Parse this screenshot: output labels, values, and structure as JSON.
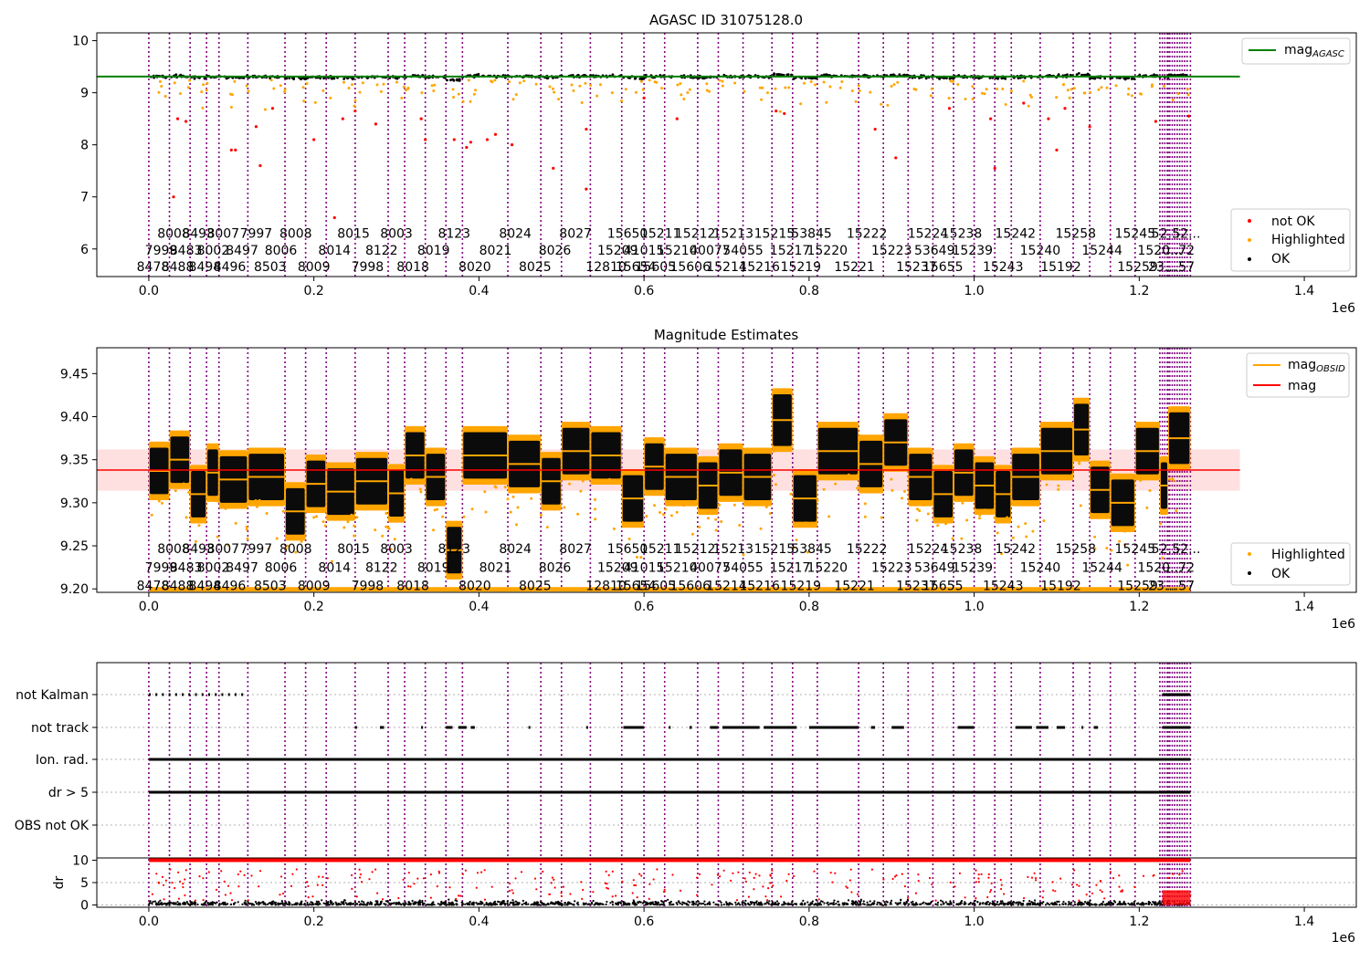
{
  "chart_data": [
    {
      "type": "scatter",
      "title": "AGASC ID 31075128.0",
      "x_offset_label": "1e6",
      "xlim": [
        -0.063,
        1.463
      ],
      "ylim": [
        5.47,
        10.15
      ],
      "xticks": [
        "0.0",
        "0.2",
        "0.4",
        "0.6",
        "0.8",
        "1.0",
        "1.2",
        "1.4"
      ],
      "yticks": [
        "6",
        "7",
        "8",
        "9",
        "10"
      ],
      "reference_line": {
        "label": "mag_AGASC",
        "value": 9.31,
        "x_end": 1.322
      },
      "legend_top": [
        {
          "label": "mag",
          "sub": "AGASC",
          "color": "#008000"
        }
      ],
      "legend_bottom": [
        {
          "label": "not OK",
          "color": "#ff0000"
        },
        {
          "label": "Highlighted",
          "color": "#ffa500"
        },
        {
          "label": "OK",
          "color": "#000000"
        }
      ],
      "obsid_rows": [
        [
          {
            "x": 0.03,
            "t": "8008"
          },
          {
            "x": 0.06,
            "t": "8493"
          },
          {
            "x": 0.09,
            "t": "8007"
          },
          {
            "x": 0.13,
            "t": "7997"
          },
          {
            "x": 0.178,
            "t": "8008"
          },
          {
            "x": 0.248,
            "t": "8015"
          },
          {
            "x": 0.3,
            "t": "8003"
          },
          {
            "x": 0.37,
            "t": "8123"
          },
          {
            "x": 0.444,
            "t": "8024"
          },
          {
            "x": 0.517,
            "t": "8027"
          },
          {
            "x": 0.58,
            "t": "15650"
          },
          {
            "x": 0.62,
            "t": "15211"
          },
          {
            "x": 0.662,
            "t": "15212"
          },
          {
            "x": 0.708,
            "t": "15213"
          },
          {
            "x": 0.758,
            "t": "15215"
          },
          {
            "x": 0.803,
            "t": "53845"
          },
          {
            "x": 0.87,
            "t": "15222"
          },
          {
            "x": 0.944,
            "t": "15224"
          },
          {
            "x": 0.985,
            "t": "15238"
          },
          {
            "x": 1.05,
            "t": "15242"
          },
          {
            "x": 1.123,
            "t": "15258"
          },
          {
            "x": 1.195,
            "t": "15245"
          },
          {
            "x": 1.232,
            "t": "52..."
          },
          {
            "x": 1.257,
            "t": "52..."
          }
        ],
        [
          {
            "x": 0.015,
            "t": "7999"
          },
          {
            "x": 0.045,
            "t": "8483"
          },
          {
            "x": 0.078,
            "t": "8002"
          },
          {
            "x": 0.113,
            "t": "8497"
          },
          {
            "x": 0.16,
            "t": "8006"
          },
          {
            "x": 0.225,
            "t": "8014"
          },
          {
            "x": 0.282,
            "t": "8122"
          },
          {
            "x": 0.345,
            "t": "8019"
          },
          {
            "x": 0.42,
            "t": "8021"
          },
          {
            "x": 0.492,
            "t": "8026"
          },
          {
            "x": 0.568,
            "t": "15209"
          },
          {
            "x": 0.6,
            "t": "41015"
          },
          {
            "x": 0.64,
            "t": "15210"
          },
          {
            "x": 0.68,
            "t": "40077"
          },
          {
            "x": 0.72,
            "t": "54055"
          },
          {
            "x": 0.777,
            "t": "15217"
          },
          {
            "x": 0.822,
            "t": "15220"
          },
          {
            "x": 0.9,
            "t": "15223"
          },
          {
            "x": 0.952,
            "t": "53649"
          },
          {
            "x": 0.998,
            "t": "15239"
          },
          {
            "x": 1.08,
            "t": "15240"
          },
          {
            "x": 1.155,
            "t": "15244"
          },
          {
            "x": 1.225,
            "t": "1520..."
          },
          {
            "x": 1.25,
            "t": "...72"
          }
        ],
        [
          {
            "x": 0.005,
            "t": "8478"
          },
          {
            "x": 0.035,
            "t": "8488"
          },
          {
            "x": 0.068,
            "t": "8494"
          },
          {
            "x": 0.098,
            "t": "8496"
          },
          {
            "x": 0.147,
            "t": "8503"
          },
          {
            "x": 0.2,
            "t": "8009"
          },
          {
            "x": 0.265,
            "t": "7998"
          },
          {
            "x": 0.32,
            "t": "8018"
          },
          {
            "x": 0.395,
            "t": "8020"
          },
          {
            "x": 0.468,
            "t": "8025"
          },
          {
            "x": 0.554,
            "t": "12810"
          },
          {
            "x": 0.59,
            "t": "15654"
          },
          {
            "x": 0.614,
            "t": "15605"
          },
          {
            "x": 0.656,
            "t": "15606"
          },
          {
            "x": 0.7,
            "t": "15214"
          },
          {
            "x": 0.74,
            "t": "15216"
          },
          {
            "x": 0.79,
            "t": "15219"
          },
          {
            "x": 0.855,
            "t": "15221"
          },
          {
            "x": 0.93,
            "t": "15237"
          },
          {
            "x": 0.962,
            "t": "15655"
          },
          {
            "x": 1.035,
            "t": "15243"
          },
          {
            "x": 1.105,
            "t": "15192"
          },
          {
            "x": 1.198,
            "t": "15259"
          },
          {
            "x": 1.228,
            "t": "23..."
          },
          {
            "x": 1.25,
            "t": "...57"
          }
        ]
      ]
    },
    {
      "type": "scatter",
      "title": "Magnitude Estimates",
      "x_offset_label": "1e6",
      "xlim": [
        -0.063,
        1.463
      ],
      "ylim": [
        9.196,
        9.48
      ],
      "xticks": [
        "0.0",
        "0.2",
        "0.4",
        "0.6",
        "0.8",
        "1.0",
        "1.2",
        "1.4"
      ],
      "yticks": [
        "9.20",
        "9.25",
        "9.30",
        "9.35",
        "9.40",
        "9.45"
      ],
      "mag_line": {
        "value": 9.338,
        "band": [
          9.314,
          9.362
        ],
        "x_end": 1.322
      },
      "legend_top": [
        {
          "label": "mag",
          "sub": "OBSID",
          "color": "#ffa500"
        },
        {
          "label": "mag",
          "sub": "",
          "color": "#ff0000"
        }
      ],
      "legend_bottom": [
        {
          "label": "Highlighted",
          "color": "#ffa500"
        },
        {
          "label": "OK",
          "color": "#000000"
        }
      ],
      "obsid_mags": [
        {
          "x0": 0.0,
          "x1": 0.025,
          "mag": 9.337
        },
        {
          "x0": 0.025,
          "x1": 0.05,
          "mag": 9.35
        },
        {
          "x0": 0.05,
          "x1": 0.07,
          "mag": 9.31
        },
        {
          "x0": 0.07,
          "x1": 0.085,
          "mag": 9.335
        },
        {
          "x0": 0.085,
          "x1": 0.12,
          "mag": 9.327
        },
        {
          "x0": 0.12,
          "x1": 0.165,
          "mag": 9.33
        },
        {
          "x0": 0.165,
          "x1": 0.19,
          "mag": 9.29
        },
        {
          "x0": 0.19,
          "x1": 0.215,
          "mag": 9.322
        },
        {
          "x0": 0.215,
          "x1": 0.25,
          "mag": 9.313
        },
        {
          "x0": 0.25,
          "x1": 0.29,
          "mag": 9.325
        },
        {
          "x0": 0.29,
          "x1": 0.31,
          "mag": 9.311
        },
        {
          "x0": 0.31,
          "x1": 0.335,
          "mag": 9.355
        },
        {
          "x0": 0.335,
          "x1": 0.36,
          "mag": 9.33
        },
        {
          "x0": 0.36,
          "x1": 0.38,
          "mag": 9.245
        },
        {
          "x0": 0.38,
          "x1": 0.435,
          "mag": 9.355
        },
        {
          "x0": 0.435,
          "x1": 0.475,
          "mag": 9.345
        },
        {
          "x0": 0.475,
          "x1": 0.5,
          "mag": 9.325
        },
        {
          "x0": 0.5,
          "x1": 0.535,
          "mag": 9.36
        },
        {
          "x0": 0.535,
          "x1": 0.573,
          "mag": 9.355
        },
        {
          "x0": 0.573,
          "x1": 0.6,
          "mag": 9.305
        },
        {
          "x0": 0.6,
          "x1": 0.625,
          "mag": 9.342
        },
        {
          "x0": 0.625,
          "x1": 0.665,
          "mag": 9.33
        },
        {
          "x0": 0.665,
          "x1": 0.69,
          "mag": 9.32
        },
        {
          "x0": 0.69,
          "x1": 0.72,
          "mag": 9.335
        },
        {
          "x0": 0.72,
          "x1": 0.755,
          "mag": 9.33
        },
        {
          "x0": 0.755,
          "x1": 0.78,
          "mag": 9.396
        },
        {
          "x0": 0.78,
          "x1": 0.81,
          "mag": 9.305
        },
        {
          "x0": 0.81,
          "x1": 0.86,
          "mag": 9.36
        },
        {
          "x0": 0.86,
          "x1": 0.89,
          "mag": 9.345
        },
        {
          "x0": 0.89,
          "x1": 0.92,
          "mag": 9.37
        },
        {
          "x0": 0.92,
          "x1": 0.95,
          "mag": 9.33
        },
        {
          "x0": 0.95,
          "x1": 0.975,
          "mag": 9.31
        },
        {
          "x0": 0.975,
          "x1": 1.0,
          "mag": 9.335
        },
        {
          "x0": 1.0,
          "x1": 1.025,
          "mag": 9.32
        },
        {
          "x0": 1.025,
          "x1": 1.045,
          "mag": 9.31
        },
        {
          "x0": 1.045,
          "x1": 1.08,
          "mag": 9.33
        },
        {
          "x0": 1.08,
          "x1": 1.12,
          "mag": 9.36
        },
        {
          "x0": 1.12,
          "x1": 1.14,
          "mag": 9.385
        },
        {
          "x0": 1.14,
          "x1": 1.165,
          "mag": 9.315
        },
        {
          "x0": 1.165,
          "x1": 1.195,
          "mag": 9.3
        },
        {
          "x0": 1.195,
          "x1": 1.225,
          "mag": 9.36
        },
        {
          "x0": 1.225,
          "x1": 1.235,
          "mag": 9.32
        },
        {
          "x0": 1.235,
          "x1": 1.262,
          "mag": 9.375
        }
      ]
    },
    {
      "type": "scatter",
      "title": "",
      "x_offset_label": "1e6",
      "xlim": [
        -0.063,
        1.463
      ],
      "xticks": [
        "0.0",
        "0.2",
        "0.4",
        "0.6",
        "0.8",
        "1.0",
        "1.2",
        "1.4"
      ],
      "flag_labels": [
        "not Kalman",
        "not track",
        "Ion. rad.",
        "dr > 5",
        "OBS not OK"
      ],
      "ylabel": "dr",
      "dr_ylim": [
        -0.5,
        10.5
      ],
      "dr_yticks": [
        "0",
        "5",
        "10"
      ],
      "dr_threshold": 10
    }
  ]
}
